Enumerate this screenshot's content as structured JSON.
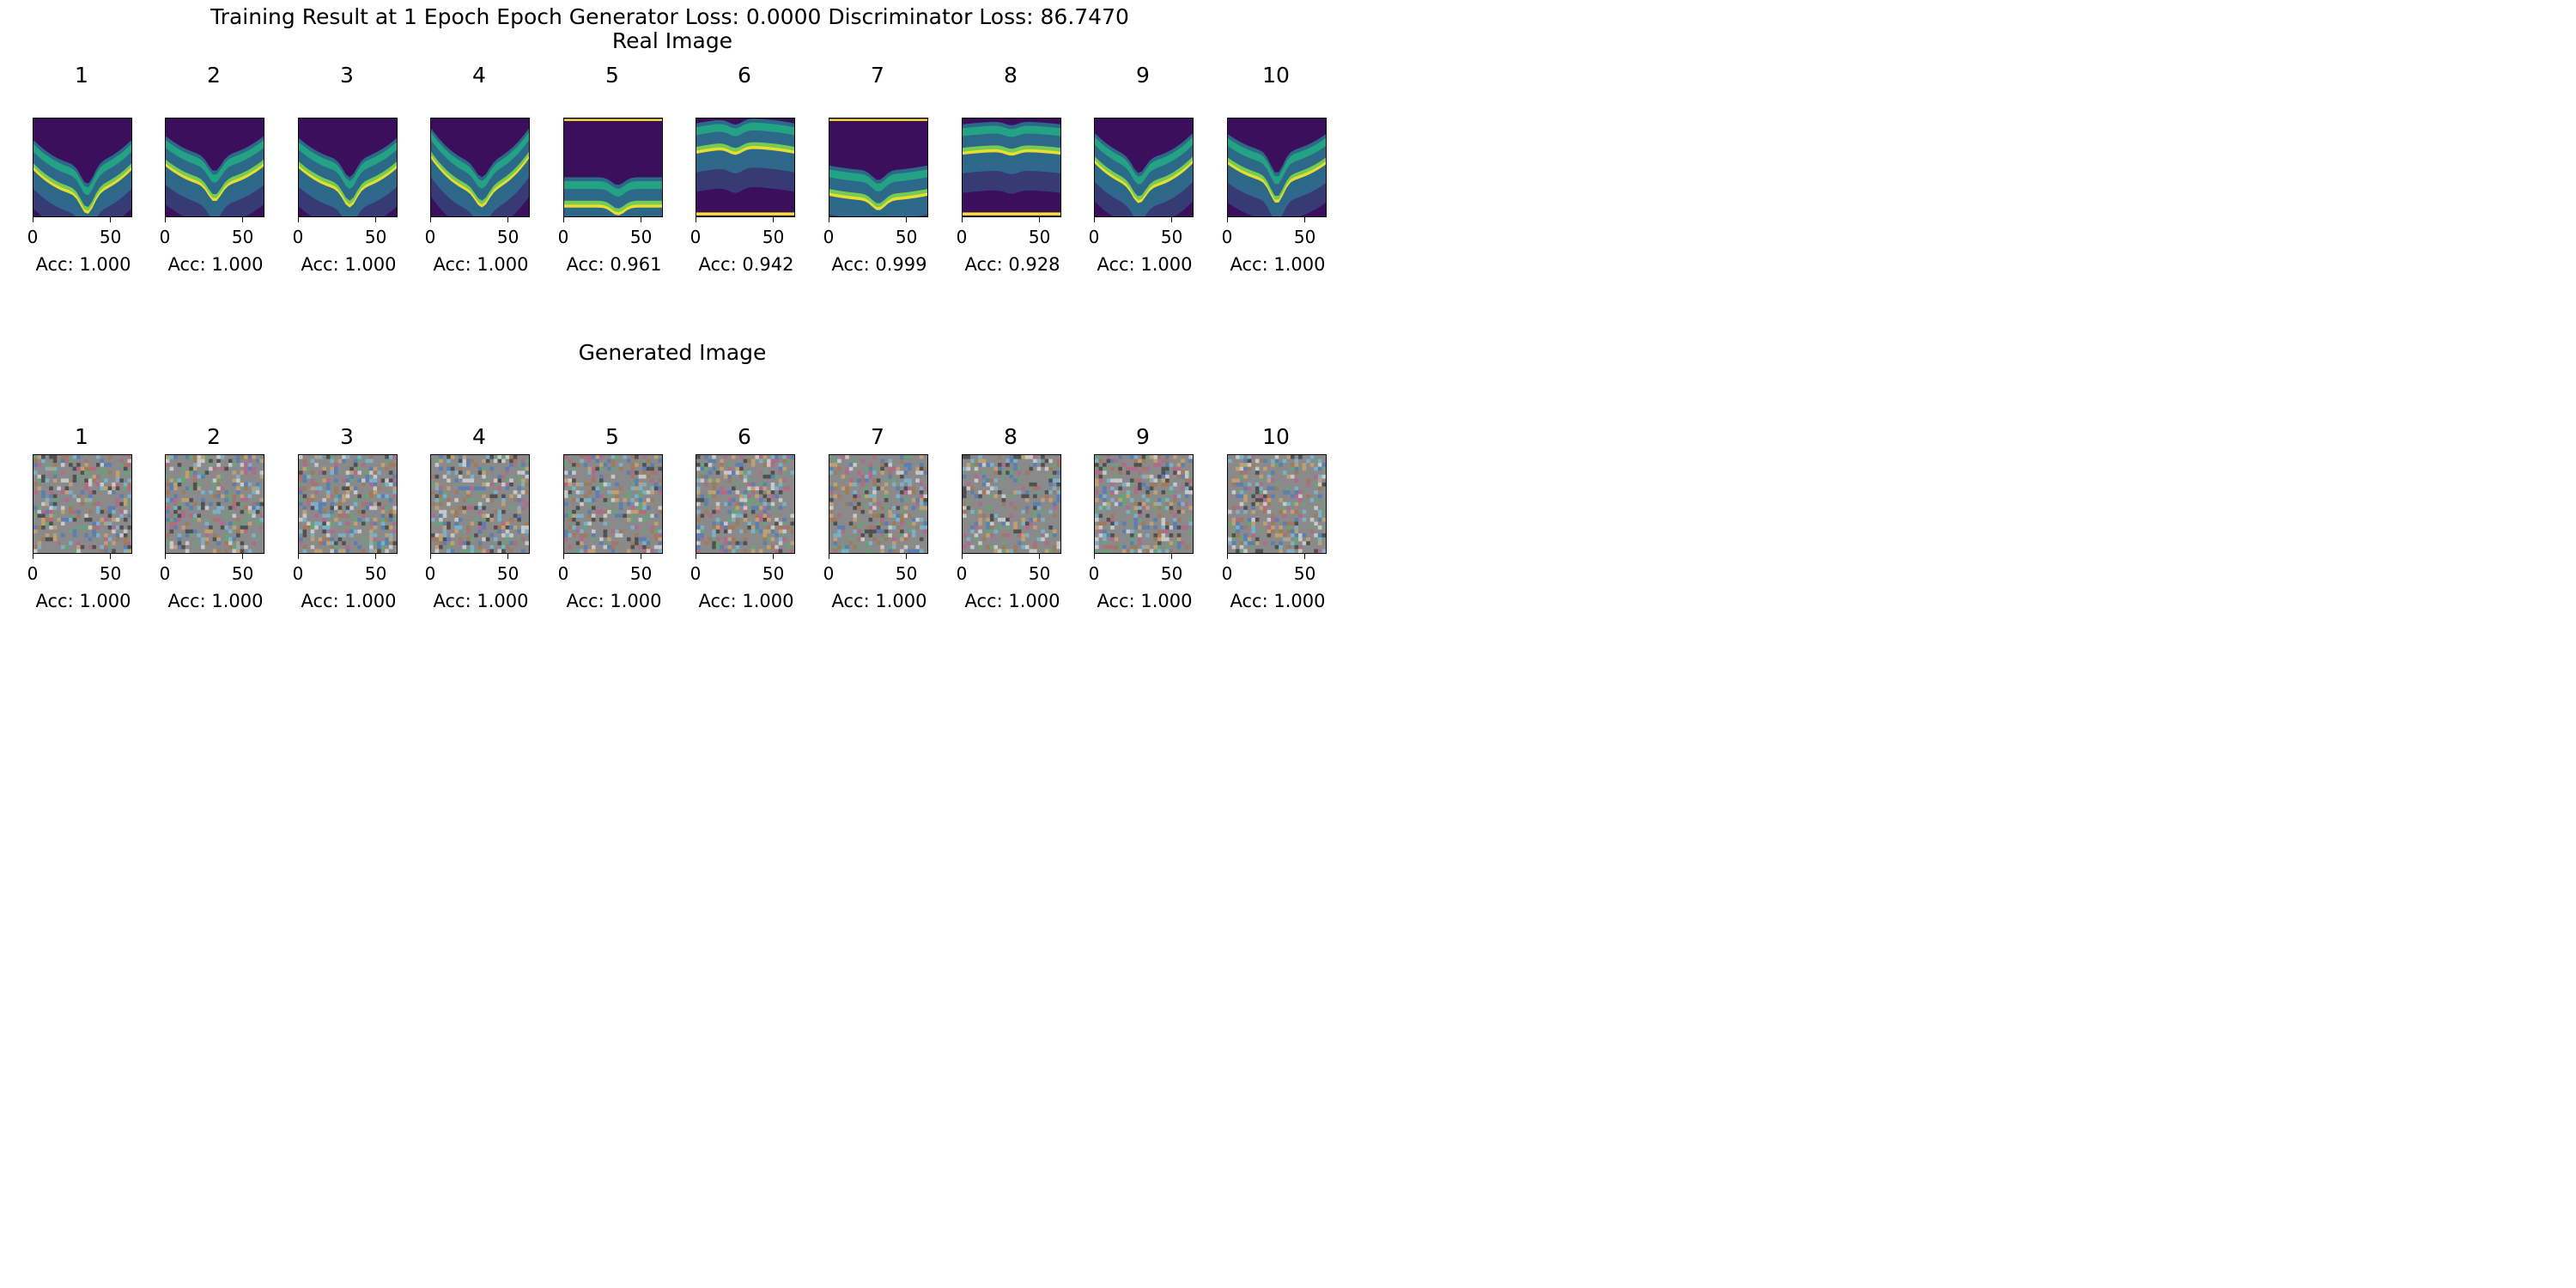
{
  "chart_data": {
    "type": "image-grid",
    "title": "Training Result at 1 Epoch Epoch Generator Loss: 0.0000 Discriminator Loss: 86.7470",
    "rows": [
      {
        "title": "Real Image",
        "panels": [
          {
            "label": "1",
            "acc": "Acc: 1.000"
          },
          {
            "label": "2",
            "acc": "Acc: 1.000"
          },
          {
            "label": "3",
            "acc": "Acc: 1.000"
          },
          {
            "label": "4",
            "acc": "Acc: 1.000"
          },
          {
            "label": "5",
            "acc": "Acc: 0.961"
          },
          {
            "label": "6",
            "acc": "Acc: 0.942"
          },
          {
            "label": "7",
            "acc": "Acc: 0.999"
          },
          {
            "label": "8",
            "acc": "Acc: 0.928"
          },
          {
            "label": "9",
            "acc": "Acc: 1.000"
          },
          {
            "label": "10",
            "acc": "Acc: 1.000"
          }
        ]
      },
      {
        "title": "Generated Image",
        "panels": [
          {
            "label": "1",
            "acc": "Acc: 1.000"
          },
          {
            "label": "2",
            "acc": "Acc: 1.000"
          },
          {
            "label": "3",
            "acc": "Acc: 1.000"
          },
          {
            "label": "4",
            "acc": "Acc: 1.000"
          },
          {
            "label": "5",
            "acc": "Acc: 1.000"
          },
          {
            "label": "6",
            "acc": "Acc: 1.000"
          },
          {
            "label": "7",
            "acc": "Acc: 1.000"
          },
          {
            "label": "8",
            "acc": "Acc: 1.000"
          },
          {
            "label": "9",
            "acc": "Acc: 1.000"
          },
          {
            "label": "10",
            "acc": "Acc: 1.000"
          }
        ]
      }
    ],
    "x_ticks": [
      "0",
      "50"
    ],
    "x_range": [
      0,
      64
    ],
    "colormap": "viridis",
    "colors": {
      "dark": "#440154",
      "mid": "#21918c",
      "bright": "#fde725",
      "noise_gray": "#8a8a8a"
    }
  }
}
